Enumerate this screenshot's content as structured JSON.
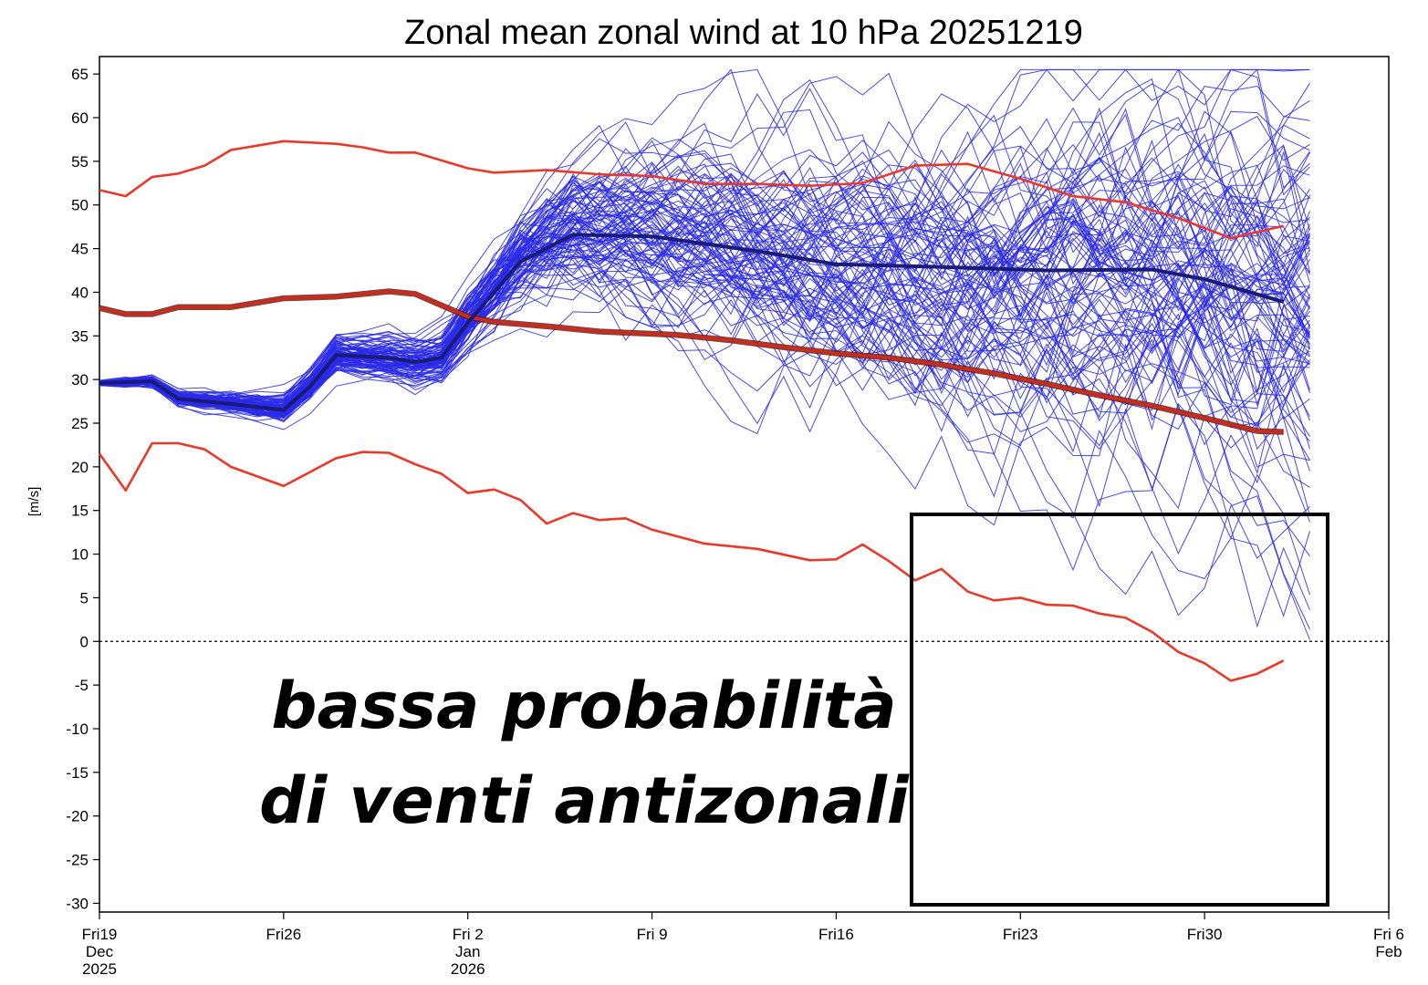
{
  "chart_data": {
    "type": "line",
    "title": "Zonal mean zonal wind at 10 hPa 20251219",
    "ylabel": "[m/s]",
    "ylim": [
      -31,
      67
    ],
    "y_ticks": [
      65,
      60,
      55,
      50,
      45,
      40,
      35,
      30,
      25,
      20,
      15,
      10,
      5,
      0,
      -5,
      -10,
      -15,
      -20,
      -25,
      -30
    ],
    "xlim": [
      "2025-12-19",
      "2026-02-06"
    ],
    "x_ticks": [
      {
        "date": "2025-12-19",
        "lines": [
          "Fri19",
          "Dec",
          "2025"
        ]
      },
      {
        "date": "2025-12-26",
        "lines": [
          "Fri26"
        ]
      },
      {
        "date": "2026-01-02",
        "lines": [
          "Fri 2",
          "Jan",
          "2026"
        ]
      },
      {
        "date": "2026-01-09",
        "lines": [
          "Fri 9"
        ]
      },
      {
        "date": "2026-01-16",
        "lines": [
          "Fri16"
        ]
      },
      {
        "date": "2026-01-23",
        "lines": [
          "Fri23"
        ]
      },
      {
        "date": "2026-01-30",
        "lines": [
          "Fri30"
        ]
      },
      {
        "date": "2026-02-06",
        "lines": [
          "Fri 6",
          "Feb"
        ]
      }
    ],
    "zero_line": true,
    "series": [
      {
        "role": "climatology-mean",
        "color": "#cc2a1a",
        "x": [
          "2025-12-19",
          "2025-12-20",
          "2025-12-21",
          "2025-12-22",
          "2025-12-23",
          "2025-12-24",
          "2025-12-26",
          "2025-12-28",
          "2025-12-30",
          "2025-12-31",
          "2026-01-01",
          "2026-01-02",
          "2026-01-03",
          "2026-01-05",
          "2026-01-07",
          "2026-01-10",
          "2026-01-12",
          "2026-01-14",
          "2026-01-16",
          "2026-01-18",
          "2026-01-20",
          "2026-01-22",
          "2026-01-24",
          "2026-01-26",
          "2026-01-28",
          "2026-01-30",
          "2026-02-01",
          "2026-02-02"
        ],
        "y": [
          38.2,
          37.5,
          37.5,
          38.3,
          38.3,
          38.3,
          39.3,
          39.5,
          40.1,
          39.8,
          38.5,
          37.2,
          36.6,
          36.1,
          35.5,
          35.1,
          34.5,
          33.7,
          33.0,
          32.5,
          31.7,
          30.7,
          29.5,
          28.2,
          27.0,
          25.6,
          24.1,
          24.0
        ]
      },
      {
        "role": "climatology-max",
        "color": "#e8392a",
        "x": [
          "2025-12-19",
          "2025-12-20",
          "2025-12-21",
          "2025-12-22",
          "2025-12-23",
          "2025-12-24",
          "2025-12-26",
          "2025-12-28",
          "2025-12-29",
          "2025-12-30",
          "2025-12-31",
          "2026-01-02",
          "2026-01-03",
          "2026-01-05",
          "2026-01-07",
          "2026-01-09",
          "2026-01-11",
          "2026-01-13",
          "2026-01-15",
          "2026-01-17",
          "2026-01-19",
          "2026-01-21",
          "2026-01-23",
          "2026-01-25",
          "2026-01-27",
          "2026-01-29",
          "2026-01-31",
          "2026-02-02"
        ],
        "y": [
          51.7,
          51.0,
          53.2,
          53.6,
          54.5,
          56.3,
          57.3,
          57.0,
          56.6,
          56.0,
          56.0,
          54.2,
          53.7,
          54.0,
          53.5,
          53.3,
          52.4,
          52.4,
          52.2,
          52.5,
          54.5,
          54.7,
          53.0,
          51.0,
          50.3,
          48.5,
          46.2,
          47.6
        ]
      },
      {
        "role": "climatology-min",
        "color": "#e8392a",
        "x": [
          "2025-12-19",
          "2025-12-20",
          "2025-12-21",
          "2025-12-22",
          "2025-12-23",
          "2025-12-24",
          "2025-12-26",
          "2025-12-28",
          "2025-12-29",
          "2025-12-30",
          "2025-12-31",
          "2026-01-01",
          "2026-01-02",
          "2026-01-03",
          "2026-01-04",
          "2026-01-05",
          "2026-01-06",
          "2026-01-07",
          "2026-01-08",
          "2026-01-09",
          "2026-01-11",
          "2026-01-13",
          "2026-01-15",
          "2026-01-16",
          "2026-01-17",
          "2026-01-18",
          "2026-01-19",
          "2026-01-20",
          "2026-01-21",
          "2026-01-22",
          "2026-01-23",
          "2026-01-24",
          "2026-01-25",
          "2026-01-26",
          "2026-01-27",
          "2026-01-28",
          "2026-01-29",
          "2026-01-30",
          "2026-01-31",
          "2026-02-01",
          "2026-02-02"
        ],
        "y": [
          21.5,
          17.3,
          22.7,
          22.7,
          22.0,
          20.0,
          17.8,
          21.0,
          21.7,
          21.6,
          20.3,
          19.2,
          17.0,
          17.4,
          16.2,
          13.5,
          14.7,
          13.9,
          14.1,
          12.8,
          11.2,
          10.6,
          9.3,
          9.4,
          11.1,
          9.2,
          7.0,
          8.3,
          5.7,
          4.7,
          5.0,
          4.2,
          4.1,
          3.2,
          2.7,
          1.1,
          -1.2,
          -2.5,
          -4.5,
          -3.7,
          -2.2
        ]
      },
      {
        "role": "ensemble-mean",
        "color": "#1a1a78",
        "x": [
          "2025-12-19",
          "2025-12-21",
          "2025-12-22",
          "2025-12-24",
          "2025-12-26",
          "2025-12-27",
          "2025-12-28",
          "2025-12-30",
          "2025-12-31",
          "2026-01-01",
          "2026-01-02",
          "2026-01-04",
          "2026-01-06",
          "2026-01-09",
          "2026-01-13",
          "2026-01-16",
          "2026-01-20",
          "2026-01-24",
          "2026-01-28",
          "2026-01-30",
          "2026-02-02"
        ],
        "y": [
          29.6,
          29.8,
          27.8,
          27.2,
          26.5,
          29.2,
          32.8,
          32.5,
          32.0,
          32.5,
          36.5,
          43.5,
          46.6,
          46.4,
          44.7,
          43.2,
          42.9,
          42.5,
          42.6,
          41.5,
          38.9
        ]
      }
    ],
    "ensemble_members": {
      "count": 100,
      "color": "#2a2ae8",
      "note": "individual ensemble member trajectories"
    }
  },
  "annotation": {
    "line1": "bassa probabilità",
    "line2": "di venti antizonali",
    "box_color": "#000000"
  }
}
